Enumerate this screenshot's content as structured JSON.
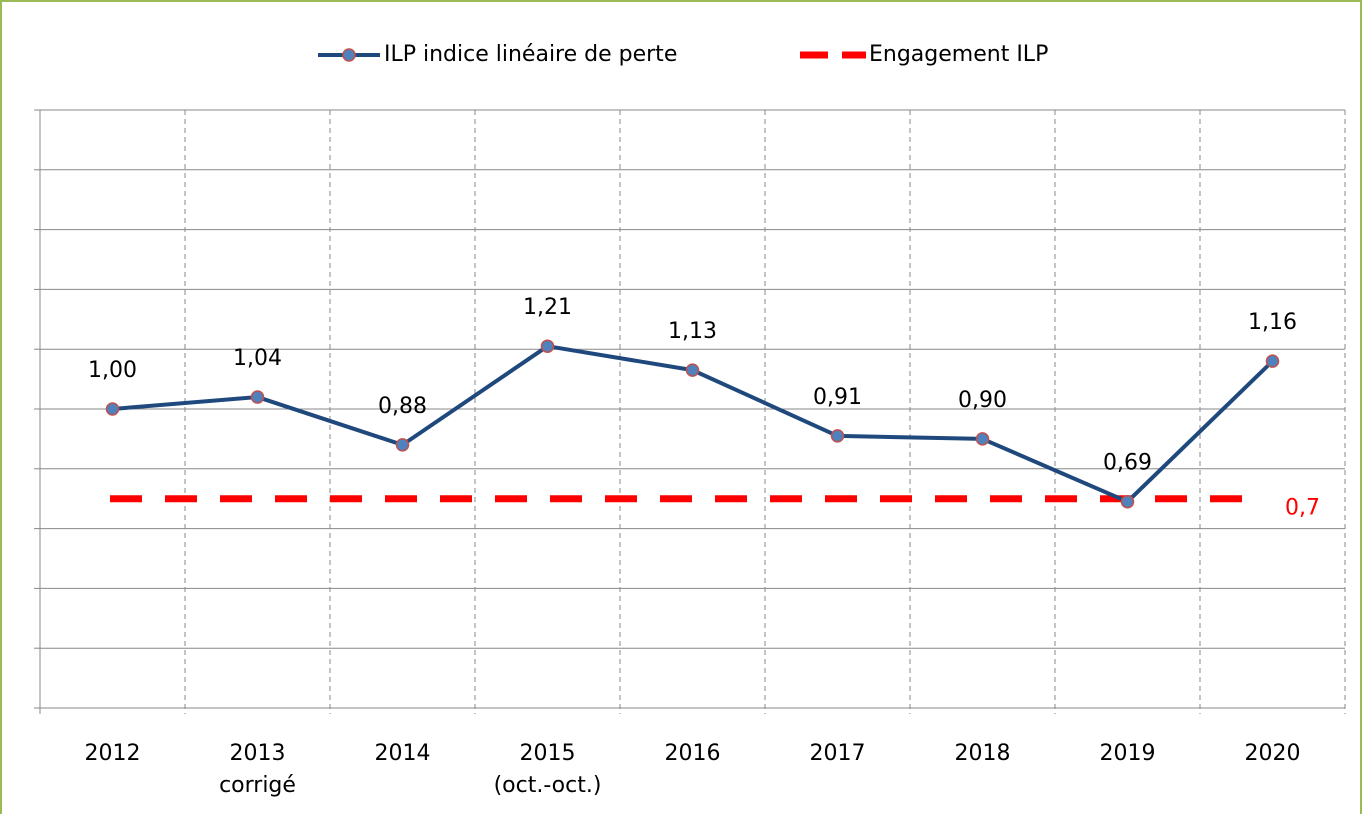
{
  "chart_data": {
    "type": "line",
    "categories": [
      "2012",
      "2013\ncorrigé",
      "2014",
      "2015\n(oct.-oct.)",
      "2016",
      "2017",
      "2018",
      "2019",
      "2020"
    ],
    "series": [
      {
        "name": "ILP indice linéaire de perte",
        "color": "#1f497d",
        "marker_color": "#4f81bd",
        "marker_edge": "#c0504d",
        "values": [
          1.0,
          1.04,
          0.88,
          1.21,
          1.13,
          0.91,
          0.9,
          0.69,
          1.16
        ],
        "value_labels": [
          "1,00",
          "1,04",
          "0,88",
          "1,21",
          "1,13",
          "0,91",
          "0,90",
          "0,69",
          "1,16"
        ]
      }
    ],
    "reference_line": {
      "name": "Engagement ILP",
      "value": 0.7,
      "label": "0,7",
      "color": "#ff0000"
    },
    "ylim": [
      0,
      2
    ],
    "yticks": [
      0,
      0.2,
      0.4,
      0.6,
      0.8,
      1,
      1.2,
      1.4,
      1.6,
      1.8,
      2
    ],
    "grid": true,
    "legend": "top"
  }
}
